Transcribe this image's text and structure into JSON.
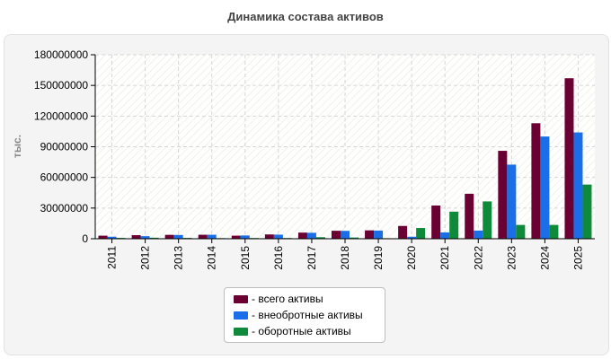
{
  "chart_data": {
    "type": "bar",
    "title": "Динамика состава активов",
    "ylabel": "тыс.",
    "xlabel": "",
    "ylim": [
      0,
      180000000
    ],
    "yticks": [
      0,
      30000000,
      60000000,
      90000000,
      120000000,
      150000000,
      180000000
    ],
    "grid": true,
    "legend_position": "bottom",
    "categories": [
      "2011",
      "2012",
      "2013",
      "2014",
      "2015",
      "2016",
      "2017",
      "2018",
      "2019",
      "2020",
      "2021",
      "2022",
      "2023",
      "2024",
      "2025"
    ],
    "series": [
      {
        "name": "- всего активы",
        "color": "#6b0033",
        "values": [
          3000000,
          3500000,
          3800000,
          3900000,
          3000000,
          4200000,
          6000000,
          7800000,
          8200000,
          12500000,
          32500000,
          44000000,
          86000000,
          113000000,
          157000000
        ]
      },
      {
        "name": "- внеобротные активы",
        "color": "#1a6fe8",
        "values": [
          2000000,
          2500000,
          3700000,
          3900000,
          3200000,
          4000000,
          5800000,
          7700000,
          8000000,
          2000000,
          6200000,
          8000000,
          72500000,
          100000000,
          104000000
        ]
      },
      {
        "name": "- оборотные активы",
        "color": "#0f8a3a",
        "values": [
          800000,
          1000000,
          800000,
          600000,
          700000,
          700000,
          1500000,
          1200000,
          500000,
          10500000,
          26500000,
          36500000,
          13500000,
          13500000,
          53000000
        ]
      }
    ]
  }
}
